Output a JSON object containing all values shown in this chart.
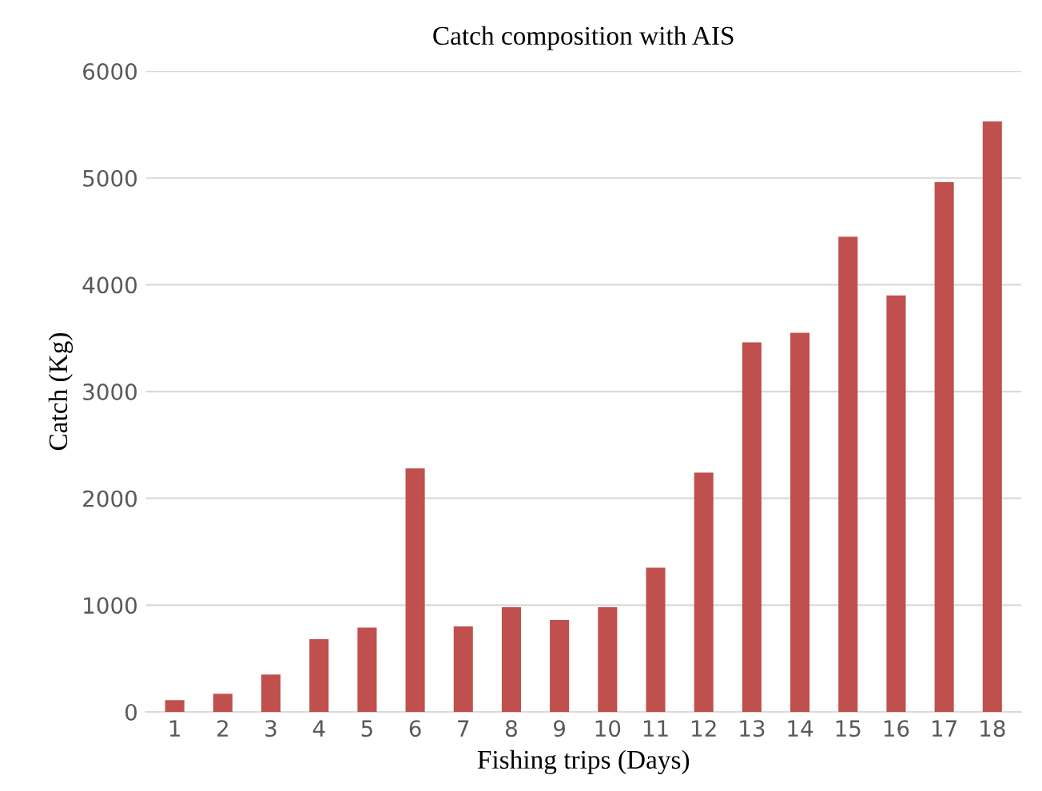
{
  "chart_data": {
    "type": "bar",
    "title": "Catch composition with AIS",
    "xlabel": "Fishing trips (Days)",
    "ylabel": "Catch (Kg)",
    "categories": [
      "1",
      "2",
      "3",
      "4",
      "5",
      "6",
      "7",
      "8",
      "9",
      "10",
      "11",
      "12",
      "13",
      "14",
      "15",
      "16",
      "17",
      "18"
    ],
    "values": [
      110,
      170,
      350,
      680,
      790,
      2280,
      800,
      980,
      860,
      980,
      1350,
      2240,
      3460,
      3550,
      4450,
      3900,
      4960,
      5530
    ],
    "color": "#c0504d",
    "ylim": [
      0,
      6000
    ],
    "yticks": [
      0,
      1000,
      2000,
      3000,
      4000,
      5000,
      6000
    ],
    "grid": "y"
  }
}
